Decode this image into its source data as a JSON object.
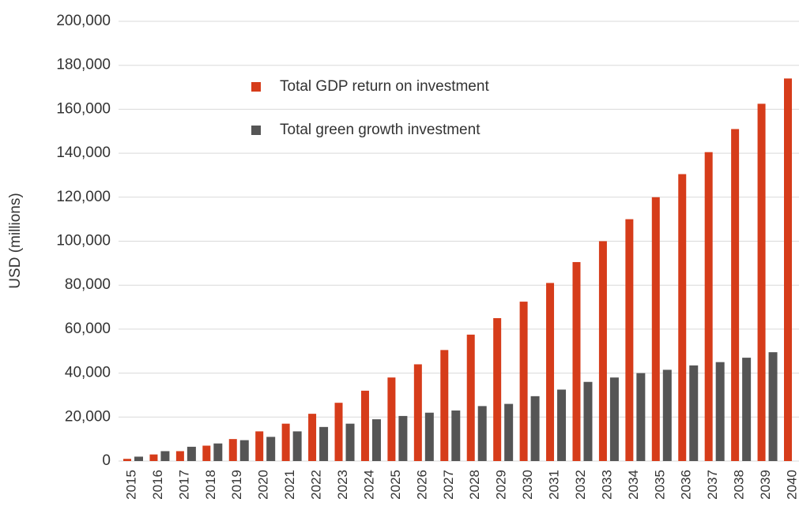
{
  "chart_data": {
    "type": "bar",
    "ylabel": "USD (millions)",
    "categories": [
      "2015",
      "2016",
      "2017",
      "2018",
      "2019",
      "2020",
      "2021",
      "2022",
      "2023",
      "2024",
      "2025",
      "2026",
      "2027",
      "2028",
      "2029",
      "2030",
      "2031",
      "2032",
      "2033",
      "2034",
      "2035",
      "2036",
      "2037",
      "2038",
      "2039",
      "2040"
    ],
    "series": [
      {
        "name": "Total GDP return on investment",
        "color": "#d63c1a",
        "values": [
          1000,
          3000,
          4500,
          7000,
          10000,
          13500,
          17000,
          21500,
          26500,
          32000,
          38000,
          44000,
          50500,
          57500,
          65000,
          72500,
          81000,
          90500,
          100000,
          110000,
          120000,
          130500,
          140500,
          151000,
          162500,
          174000
        ]
      },
      {
        "name": "Total green growth investment",
        "color": "#555555",
        "values": [
          2000,
          4500,
          6500,
          8000,
          9500,
          11000,
          13500,
          15500,
          17000,
          19000,
          20500,
          22000,
          23000,
          25000,
          26000,
          29500,
          32500,
          36000,
          38000,
          40000,
          41500,
          43500,
          45000,
          47000,
          49500,
          null
        ]
      }
    ],
    "ylim": [
      0,
      200000
    ],
    "yticks": [
      0,
      {
        "value": 20000,
        "label": "20,000"
      },
      {
        "value": 40000,
        "label": "40,000"
      },
      {
        "value": 60000,
        "label": "60,000"
      },
      {
        "value": 80000,
        "label": "80,000"
      },
      {
        "value": 100000,
        "label": "100,000"
      },
      {
        "value": 120000,
        "label": "120,000"
      },
      {
        "value": 140000,
        "label": "140,000"
      },
      {
        "value": 160000,
        "label": "160,000"
      },
      {
        "value": 180000,
        "label": "180,000"
      },
      {
        "value": 200000,
        "label": "200,000"
      }
    ],
    "grid": true
  }
}
